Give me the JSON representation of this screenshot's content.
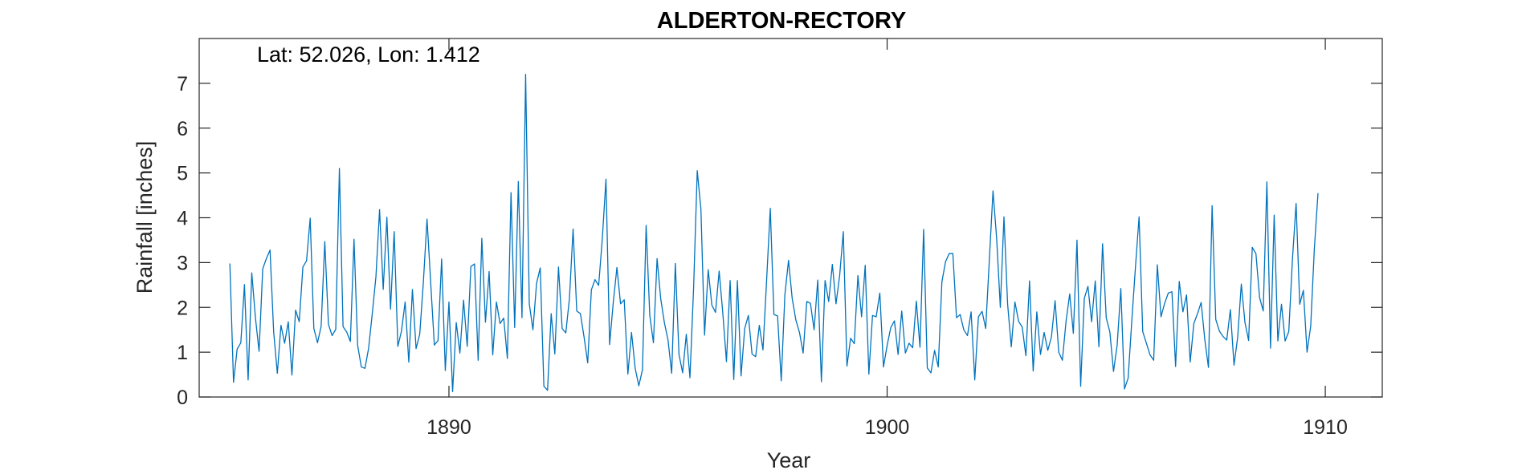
{
  "chart_data": {
    "type": "line",
    "title": "ALDERTON-RECTORY",
    "annotation": "Lat: 52.026, Lon: 1.412",
    "xlabel": "Year",
    "ylabel": "Rainfall [inches]",
    "xlim": [
      1884.3,
      1911.3
    ],
    "ylim": [
      0,
      8
    ],
    "xticks": [
      1890,
      1900,
      1910
    ],
    "yticks": [
      0,
      1,
      2,
      3,
      4,
      5,
      6,
      7
    ],
    "grid": false,
    "legend": "none",
    "series_color": "#0072BD",
    "series": [
      {
        "start": [
          1885,
          1
        ],
        "values": [
          2.98,
          0.33,
          1.07,
          1.21,
          2.51,
          0.38,
          2.77,
          1.77,
          1.02,
          2.86,
          3.09,
          3.28,
          1.45,
          0.53,
          1.6,
          1.2,
          1.68,
          0.49,
          1.94,
          1.68,
          2.9,
          3.04,
          3.99,
          1.53,
          1.21,
          1.58,
          3.47,
          1.62,
          1.37,
          1.51,
          5.1,
          1.57,
          1.45,
          1.24,
          3.52,
          1.15,
          0.67,
          0.64,
          1.09,
          1.86,
          2.68,
          4.18,
          2.4,
          4.01,
          1.96,
          3.69,
          1.13,
          1.47,
          2.12,
          0.78,
          2.4,
          1.08,
          1.4,
          2.57,
          3.97,
          2.55,
          1.16,
          1.26,
          3.08,
          0.59,
          2.12,
          0.12,
          1.66,
          0.98,
          2.16,
          1.13,
          2.91,
          2.97,
          0.82,
          3.54,
          1.67,
          2.8,
          0.94,
          2.12,
          1.64,
          1.76,
          0.86,
          4.56,
          1.55,
          4.81,
          1.77,
          7.2,
          2.08,
          1.5,
          2.54,
          2.88,
          0.24,
          0.15,
          1.86,
          0.96,
          2.9,
          1.53,
          1.43,
          2.2,
          3.75,
          1.92,
          1.86,
          1.34,
          0.76,
          2.39,
          2.62,
          2.49,
          3.53,
          4.86,
          1.17,
          2.11,
          2.89,
          2.08,
          2.17,
          0.51,
          1.44,
          0.64,
          0.25,
          0.61,
          3.83,
          1.82,
          1.21,
          3.09,
          2.19,
          1.66,
          1.27,
          0.53,
          2.98,
          0.95,
          0.54,
          1.4,
          0.43,
          2.43,
          5.05,
          4.2,
          1.38,
          2.84,
          2.05,
          1.89,
          2.81,
          1.87,
          0.79,
          2.6,
          0.39,
          2.6,
          0.47,
          1.53,
          1.82,
          0.96,
          0.9,
          1.6,
          1.05,
          2.61,
          4.21,
          1.84,
          1.81,
          0.36,
          2.28,
          3.05,
          2.2,
          1.72,
          1.44,
          0.98,
          2.13,
          2.09,
          1.5,
          2.61,
          0.34,
          2.6,
          2.13,
          2.96,
          2.08,
          2.71,
          3.69,
          0.69,
          1.31,
          1.19,
          2.71,
          1.79,
          2.94,
          0.51,
          1.82,
          1.79,
          2.32,
          0.67,
          1.15,
          1.55,
          1.7,
          0.95,
          1.92,
          0.98,
          1.2,
          1.1,
          2.14,
          1.11,
          3.74,
          0.65,
          0.54,
          1.04,
          0.67,
          2.57,
          3.02,
          3.2,
          3.2,
          1.77,
          1.84,
          1.5,
          1.37,
          1.9,
          0.38,
          1.79,
          1.91,
          1.53,
          3.07,
          4.6,
          3.53,
          2.0,
          4.02,
          2.07,
          1.12,
          2.12,
          1.69,
          1.56,
          0.92,
          2.59,
          0.58,
          1.9,
          0.95,
          1.44,
          1.04,
          1.34,
          2.15,
          1.0,
          0.82,
          1.69,
          2.3,
          1.42,
          3.5,
          0.24,
          2.2,
          2.47,
          1.68,
          2.59,
          1.12,
          3.42,
          1.77,
          1.45,
          0.57,
          1.16,
          2.42,
          0.18,
          0.42,
          1.69,
          2.89,
          4.02,
          1.46,
          1.2,
          0.94,
          0.82,
          2.95,
          1.79,
          2.09,
          2.32,
          2.35,
          0.68,
          2.58,
          1.9,
          2.28,
          0.78,
          1.64,
          1.86,
          2.11,
          1.28,
          0.66,
          4.27,
          1.73,
          1.47,
          1.35,
          1.27,
          1.95,
          0.71,
          1.33,
          2.52,
          1.66,
          1.26,
          3.34,
          3.2,
          2.22,
          1.92,
          4.8,
          1.09,
          4.06,
          1.25,
          2.07,
          1.25,
          1.46,
          3.07,
          4.32,
          2.07,
          2.38,
          1.0,
          1.58,
          3.31,
          4.55
        ]
      }
    ]
  }
}
